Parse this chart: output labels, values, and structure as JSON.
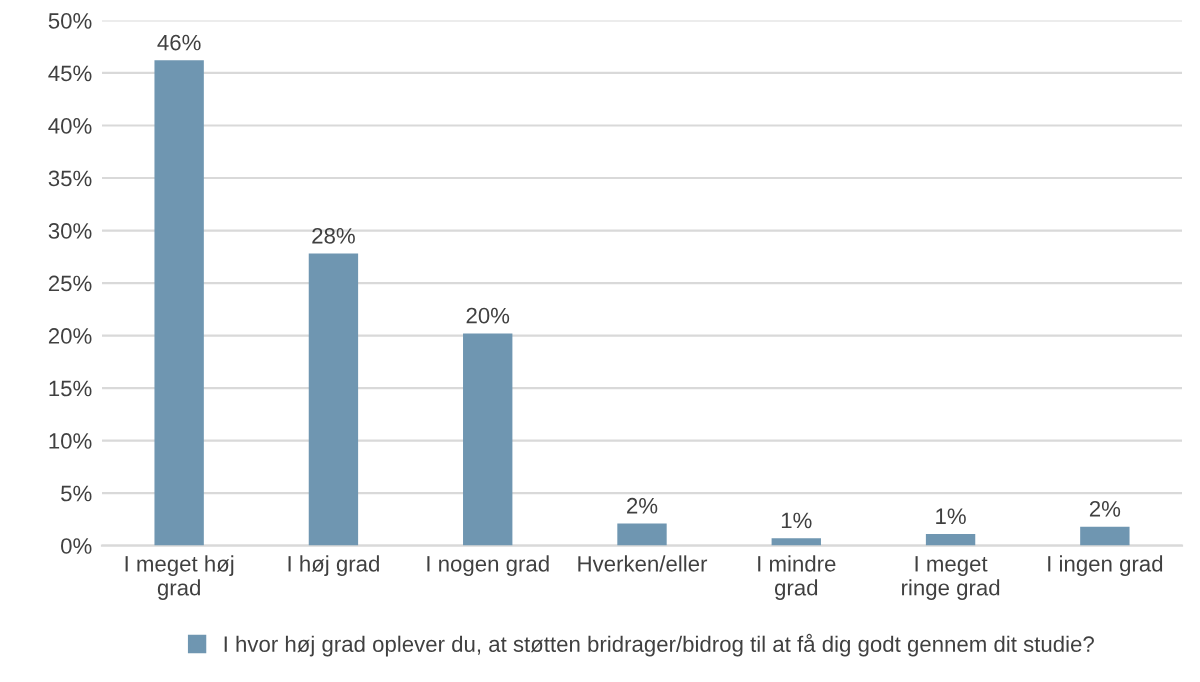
{
  "chart_data": {
    "type": "bar",
    "categories": [
      "I meget høj grad",
      "I høj grad",
      "I nogen grad",
      "Hverken/eller",
      "I mindre grad",
      "I meget ringe grad",
      "I ingen grad"
    ],
    "series": [
      {
        "name": "I hvor høj grad oplever du, at støtten bridrager/bidrog til at få dig godt gennem dit studie?",
        "color": "#6f96b1",
        "values": [
          46.2,
          27.8,
          20.2,
          2.1,
          0.7,
          1.1,
          1.8
        ],
        "value_labels": [
          "46%",
          "28%",
          "20%",
          "2%",
          "1%",
          "1%",
          "2%"
        ]
      }
    ],
    "ylim": [
      0,
      50
    ],
    "yticks": [
      {
        "value": 0,
        "label": "0%"
      },
      {
        "value": 5,
        "label": "5%"
      },
      {
        "value": 10,
        "label": "10%"
      },
      {
        "value": 15,
        "label": "15%"
      },
      {
        "value": 20,
        "label": "20%"
      },
      {
        "value": 25,
        "label": "25%"
      },
      {
        "value": 30,
        "label": "30%"
      },
      {
        "value": 35,
        "label": "35%"
      },
      {
        "value": 40,
        "label": "40%"
      },
      {
        "value": 45,
        "label": "45%"
      },
      {
        "value": 50,
        "label": "50%"
      }
    ],
    "grid": "y",
    "legend": "bottom"
  }
}
